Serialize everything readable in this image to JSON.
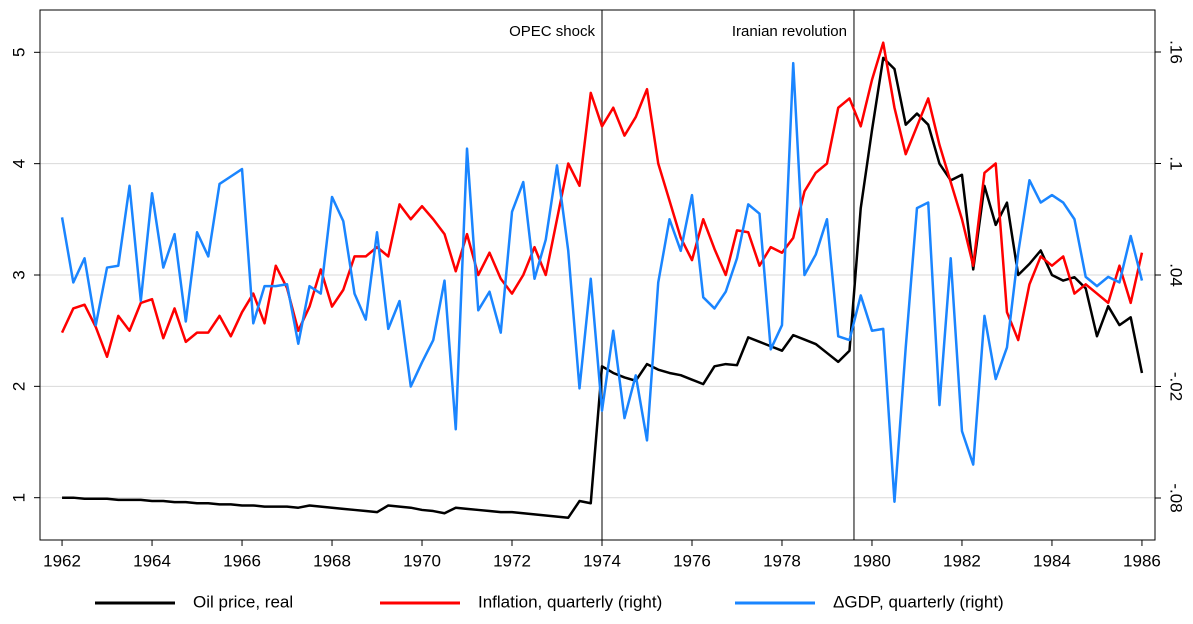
{
  "chart_data": {
    "type": "line",
    "x": [
      1962,
      1962.25,
      1962.5,
      1962.75,
      1963,
      1963.25,
      1963.5,
      1963.75,
      1964,
      1964.25,
      1964.5,
      1964.75,
      1965,
      1965.25,
      1965.5,
      1965.75,
      1966,
      1966.25,
      1966.5,
      1966.75,
      1967,
      1967.25,
      1967.5,
      1967.75,
      1968,
      1968.25,
      1968.5,
      1968.75,
      1969,
      1969.25,
      1969.5,
      1969.75,
      1970,
      1970.25,
      1970.5,
      1970.75,
      1971,
      1971.25,
      1971.5,
      1971.75,
      1972,
      1972.25,
      1972.5,
      1972.75,
      1973,
      1973.25,
      1973.5,
      1973.75,
      1974,
      1974.25,
      1974.5,
      1974.75,
      1975,
      1975.25,
      1975.5,
      1975.75,
      1976,
      1976.25,
      1976.5,
      1976.75,
      1977,
      1977.25,
      1977.5,
      1977.75,
      1978,
      1978.25,
      1978.5,
      1978.75,
      1979,
      1979.25,
      1979.5,
      1979.75,
      1980,
      1980.25,
      1980.5,
      1980.75,
      1981,
      1981.25,
      1981.5,
      1981.75,
      1982,
      1982.25,
      1982.5,
      1982.75,
      1983,
      1983.25,
      1983.5,
      1983.75,
      1984,
      1984.25,
      1984.5,
      1984.75,
      1985,
      1985.25,
      1985.5,
      1985.75,
      1986
    ],
    "series": [
      {
        "name": "Oil price, real",
        "color": "#000000",
        "values": [
          1.0,
          1.0,
          0.99,
          0.99,
          0.99,
          0.98,
          0.98,
          0.98,
          0.97,
          0.97,
          0.96,
          0.96,
          0.95,
          0.95,
          0.94,
          0.94,
          0.93,
          0.93,
          0.92,
          0.92,
          0.92,
          0.91,
          0.93,
          0.92,
          0.91,
          0.9,
          0.89,
          0.88,
          0.87,
          0.93,
          0.92,
          0.91,
          0.89,
          0.88,
          0.86,
          0.91,
          0.9,
          0.89,
          0.88,
          0.87,
          0.87,
          0.86,
          0.85,
          0.84,
          0.83,
          0.82,
          0.97,
          0.95,
          2.18,
          2.12,
          2.08,
          2.05,
          2.2,
          2.15,
          2.12,
          2.1,
          2.06,
          2.02,
          2.18,
          2.2,
          2.19,
          2.44,
          2.4,
          2.36,
          2.32,
          2.46,
          2.42,
          2.38,
          2.3,
          2.22,
          2.32,
          3.6,
          4.3,
          4.95,
          4.85,
          4.35,
          4.45,
          4.35,
          4.0,
          3.85,
          3.9,
          3.05,
          3.8,
          3.45,
          3.65,
          3.0,
          3.1,
          3.22,
          3.0,
          2.95,
          2.98,
          2.88,
          2.45,
          2.72,
          2.55,
          2.62,
          2.12
        ]
      },
      {
        "name": "Inflation, quarterly (right)",
        "color": "#ff0000",
        "axis": "y2",
        "values": [
          0.009,
          0.022,
          0.024,
          0.012,
          -0.004,
          0.018,
          0.01,
          0.025,
          0.027,
          0.006,
          0.022,
          0.004,
          0.009,
          0.009,
          0.018,
          0.007,
          0.02,
          0.03,
          0.014,
          0.045,
          0.033,
          0.01,
          0.023,
          0.043,
          0.023,
          0.032,
          0.05,
          0.05,
          0.055,
          0.05,
          0.078,
          0.07,
          0.077,
          0.07,
          0.062,
          0.042,
          0.062,
          0.04,
          0.052,
          0.038,
          0.03,
          0.04,
          0.055,
          0.04,
          0.07,
          0.1,
          0.088,
          0.138,
          0.12,
          0.13,
          0.115,
          0.125,
          0.14,
          0.1,
          0.08,
          0.06,
          0.048,
          0.07,
          0.054,
          0.04,
          0.064,
          0.063,
          0.045,
          0.055,
          0.052,
          0.06,
          0.085,
          0.095,
          0.1,
          0.13,
          0.135,
          0.12,
          0.145,
          0.165,
          0.13,
          0.105,
          0.12,
          0.135,
          0.11,
          0.09,
          0.07,
          0.045,
          0.095,
          0.1,
          0.02,
          0.005,
          0.035,
          0.05,
          0.045,
          0.05,
          0.03,
          0.035,
          0.03,
          0.025,
          0.045,
          0.025,
          0.052
        ]
      },
      {
        "name": "ΔGDP, quarterly (right)",
        "color": "#1a85ff",
        "axis": "y2",
        "values": [
          0.071,
          0.036,
          0.049,
          0.013,
          0.044,
          0.045,
          0.088,
          0.026,
          0.084,
          0.044,
          0.062,
          0.015,
          0.063,
          0.05,
          0.089,
          0.093,
          0.097,
          0.014,
          0.034,
          0.034,
          0.035,
          0.003,
          0.034,
          0.03,
          0.082,
          0.069,
          0.03,
          0.016,
          0.063,
          0.011,
          0.026,
          -0.02,
          -0.007,
          0.005,
          0.037,
          -0.043,
          0.108,
          0.021,
          0.031,
          0.009,
          0.074,
          0.09,
          0.038,
          0.059,
          0.099,
          0.053,
          -0.021,
          0.038,
          -0.033,
          0.01,
          -0.037,
          -0.014,
          -0.049,
          0.036,
          0.07,
          0.053,
          0.083,
          0.028,
          0.022,
          0.031,
          0.049,
          0.078,
          0.073,
          0.0,
          0.013,
          0.154,
          0.04,
          0.051,
          0.07,
          0.007,
          0.005,
          0.029,
          0.01,
          0.011,
          -0.082,
          0.001,
          0.076,
          0.079,
          -0.03,
          0.049,
          -0.044,
          -0.062,
          0.018,
          -0.016,
          0.001,
          0.052,
          0.091,
          0.079,
          0.083,
          0.079,
          0.07,
          0.039,
          0.034,
          0.039,
          0.036,
          0.061,
          0.037
        ]
      }
    ],
    "xlim": [
      1961.51,
      1986.29
    ],
    "xticks": [
      1962,
      1964,
      1966,
      1968,
      1970,
      1972,
      1974,
      1976,
      1978,
      1980,
      1982,
      1984,
      1986
    ],
    "ylim": [
      0.62,
      5.38
    ],
    "yticks": [
      1,
      2,
      3,
      4,
      5
    ],
    "y2lim": [
      -0.1026,
      0.1826
    ],
    "y2ticks": [
      {
        "value": -0.08,
        "label": "-.08"
      },
      {
        "value": -0.02,
        "label": "-.02"
      },
      {
        "value": 0.04,
        "label": ".04"
      },
      {
        "value": 0.1,
        "label": ".1"
      },
      {
        "value": 0.16,
        "label": ".16"
      }
    ],
    "annotations": [
      {
        "label": "OPEC shock",
        "x": 1974
      },
      {
        "label": "Iranian revolution",
        "x": 1979.6
      }
    ],
    "grid": true,
    "legend": "bottom"
  }
}
